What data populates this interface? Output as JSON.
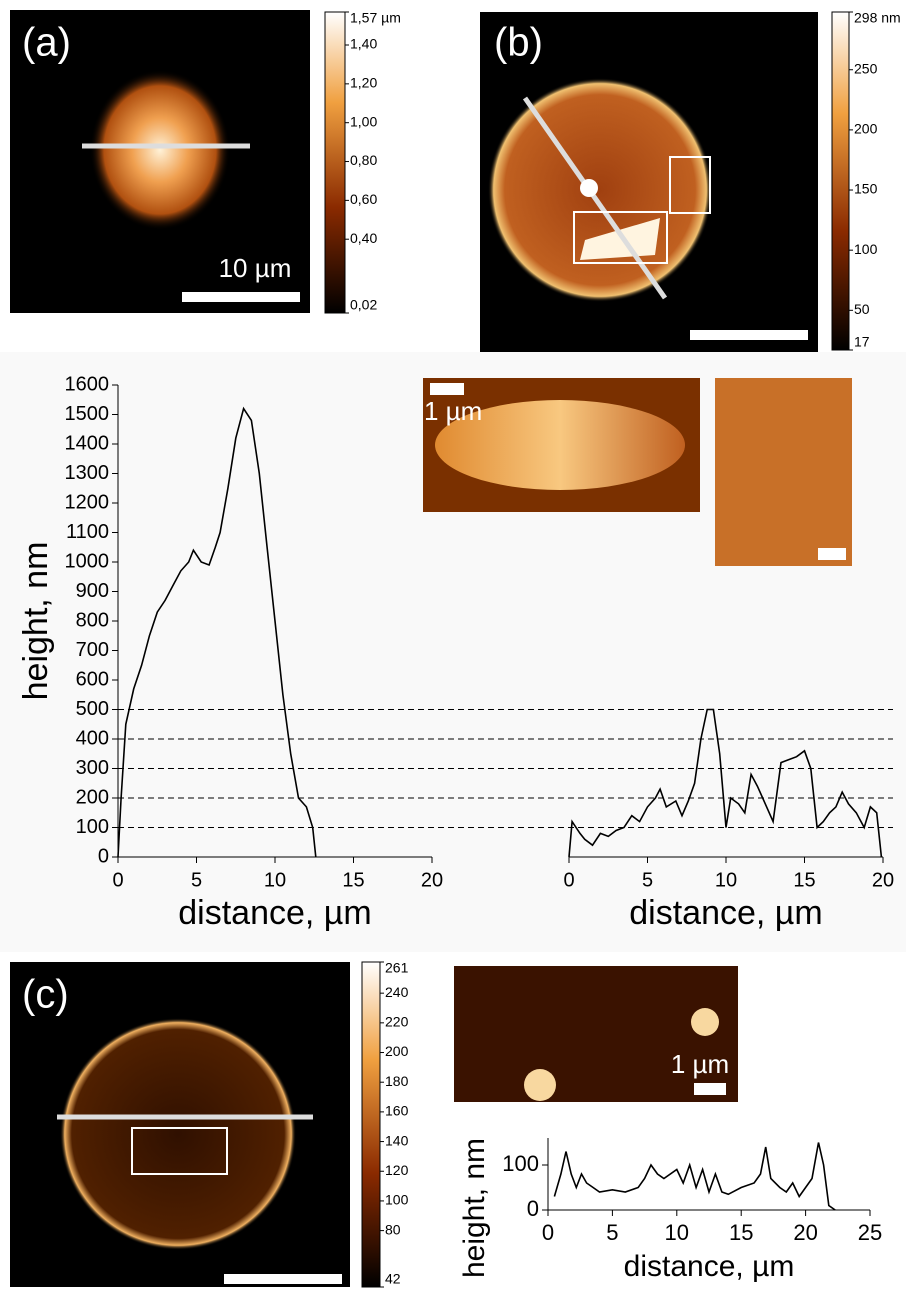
{
  "panels": [
    "(a)",
    "(b)",
    "(c)"
  ],
  "scale_labels": [
    "10 µm",
    "1 µm",
    "1 µm"
  ],
  "colorbars": [
    {
      "ylim": [
        0.02,
        1.57
      ],
      "yticks": [
        {
          "value": 1.57,
          "label": "1,57 µm"
        },
        {
          "value": 1.4,
          "label": "1,40"
        },
        {
          "value": 1.2,
          "label": "1,20"
        },
        {
          "value": 1.0,
          "label": "1,00"
        },
        {
          "value": 0.8,
          "label": "0,80"
        },
        {
          "value": 0.6,
          "label": "0,60"
        },
        {
          "value": 0.4,
          "label": "0,40"
        },
        {
          "value": 0.02,
          "label": "0,02"
        }
      ]
    },
    {
      "ylim": [
        17,
        298
      ],
      "yticks": [
        {
          "value": 298,
          "label": "298 nm"
        },
        250,
        200,
        150,
        100,
        50,
        17
      ]
    },
    {
      "ylim": [
        42,
        261
      ],
      "yticks": [
        261,
        240,
        220,
        200,
        180,
        160,
        140,
        120,
        100,
        80,
        42
      ]
    }
  ],
  "chart_data": [
    {
      "type": "line",
      "xlabel": "distance, µm",
      "ylabel": "height, nm",
      "color": "#000000",
      "xlim": [
        0,
        20
      ],
      "xticks": [
        0,
        5,
        10,
        15,
        20
      ],
      "ylim": [
        0,
        1600
      ],
      "yticks": [
        0,
        100,
        200,
        300,
        400,
        500,
        600,
        700,
        800,
        900,
        1000,
        1100,
        1200,
        1300,
        1400,
        1500,
        1600
      ],
      "reference_lines": [
        100,
        200,
        300,
        400,
        500
      ],
      "x": [
        0,
        0.2,
        0.5,
        1,
        1.5,
        2,
        2.5,
        3,
        3.5,
        4,
        4.5,
        4.8,
        5.3,
        5.8,
        6.2,
        6.5,
        7,
        7.5,
        8,
        8.5,
        9,
        9.5,
        10,
        10.5,
        11,
        11.5,
        12,
        12.4,
        12.6
      ],
      "values": [
        0,
        200,
        450,
        570,
        650,
        750,
        830,
        870,
        920,
        970,
        1000,
        1040,
        1000,
        990,
        1050,
        1100,
        1250,
        1420,
        1520,
        1480,
        1300,
        1050,
        800,
        550,
        350,
        200,
        170,
        100,
        0
      ]
    },
    {
      "type": "line",
      "xlabel": "distance, µm",
      "color": "#000000",
      "xlim": [
        0,
        20
      ],
      "xticks": [
        0,
        5,
        10,
        15,
        20
      ],
      "ylim": [
        0,
        1600
      ],
      "x": [
        0,
        0.2,
        0.7,
        1,
        1.5,
        2,
        2.5,
        3,
        3.5,
        4,
        4.5,
        5,
        5.5,
        5.8,
        6.2,
        6.8,
        7.2,
        7.6,
        8,
        8.4,
        8.8,
        9.2,
        9.6,
        10,
        10.3,
        10.8,
        11.2,
        11.6,
        12,
        12.5,
        13,
        13.5,
        14,
        14.5,
        15,
        15.4,
        15.8,
        16.2,
        16.6,
        17,
        17.4,
        17.8,
        18.3,
        18.8,
        19.2,
        19.6,
        19.9
      ],
      "values": [
        0,
        120,
        80,
        60,
        40,
        80,
        70,
        90,
        100,
        140,
        120,
        170,
        200,
        230,
        170,
        190,
        140,
        190,
        250,
        400,
        500,
        500,
        350,
        100,
        200,
        180,
        150,
        280,
        240,
        180,
        120,
        320,
        330,
        340,
        360,
        300,
        100,
        120,
        150,
        170,
        220,
        180,
        150,
        100,
        170,
        150,
        0
      ]
    },
    {
      "type": "line",
      "xlabel": "distance, µm",
      "ylabel": "height, nm",
      "color": "#000000",
      "xlim": [
        0,
        25
      ],
      "xticks": [
        0,
        5,
        10,
        15,
        20,
        25
      ],
      "ylim": [
        0,
        160
      ],
      "yticks": [
        0,
        100
      ],
      "x": [
        0.5,
        1,
        1.4,
        1.8,
        2.2,
        2.6,
        3,
        3.5,
        4,
        5,
        6,
        7,
        7.5,
        8,
        8.5,
        9,
        10,
        10.5,
        11,
        11.5,
        12,
        12.5,
        13,
        13.5,
        14,
        15,
        16,
        16.5,
        16.9,
        17.3,
        18,
        18.5,
        19,
        19.5,
        20,
        20.5,
        21,
        21.4,
        21.8,
        22.3
      ],
      "values": [
        30,
        80,
        130,
        80,
        50,
        80,
        60,
        50,
        40,
        45,
        40,
        50,
        70,
        100,
        80,
        70,
        90,
        60,
        100,
        50,
        90,
        40,
        80,
        40,
        35,
        50,
        60,
        80,
        140,
        70,
        50,
        40,
        60,
        30,
        50,
        70,
        150,
        100,
        10,
        0
      ]
    }
  ]
}
